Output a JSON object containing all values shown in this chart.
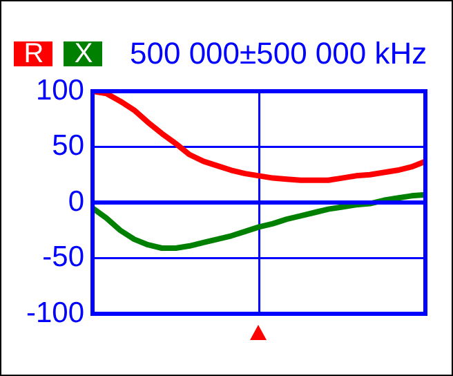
{
  "chart_data": {
    "type": "line",
    "title": "500 000±500 000 kHz",
    "categories": [
      null,
      null,
      null,
      null,
      null,
      null,
      null,
      null,
      null,
      null,
      null,
      null,
      null,
      null,
      null,
      null,
      null,
      null,
      null,
      null,
      null,
      null,
      null,
      null,
      null
    ],
    "series": [
      {
        "name": "R",
        "color": "#ff0000",
        "values": [
          100,
          98,
          91,
          83,
          72,
          62,
          53,
          43,
          37,
          33,
          29,
          26,
          24,
          22,
          21,
          20,
          20,
          20,
          22,
          24,
          25,
          27,
          29,
          32,
          37
        ]
      },
      {
        "name": "X",
        "color": "#008000",
        "values": [
          -5,
          -14,
          -25,
          -33,
          -38,
          -41,
          -41,
          -39,
          -36,
          -33,
          -30,
          -26,
          -22,
          -19,
          -15,
          -12,
          -9,
          -6,
          -4,
          -2,
          -1,
          2,
          4,
          6,
          7
        ]
      }
    ],
    "ylim": [
      -100,
      100
    ],
    "yticks": [
      -100,
      -50,
      0,
      50,
      100
    ],
    "ref_lines": [
      {
        "axis": "y",
        "value": 0,
        "color": "#0000ff"
      }
    ],
    "grid": true,
    "legend": "top left",
    "tick_labels": "y",
    "marker": "none",
    "line_style": "solid"
  }
}
